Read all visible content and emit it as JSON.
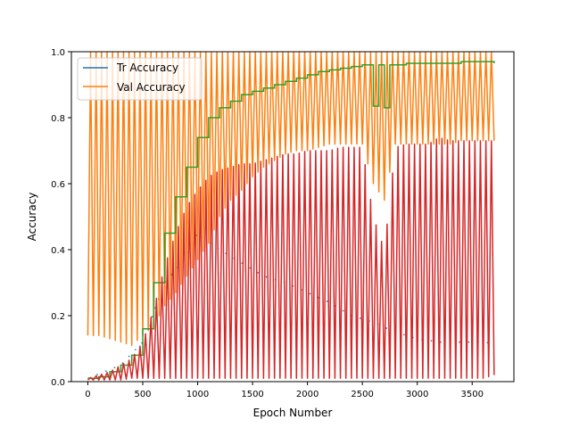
{
  "chart_data": {
    "type": "line",
    "xlabel": "Epoch Number",
    "ylabel": "Accuracy",
    "xlim": [
      -150,
      3880
    ],
    "ylim": [
      0,
      1.0
    ],
    "xticks": [
      0,
      500,
      1000,
      1500,
      2000,
      2500,
      3000,
      3500
    ],
    "yticks": [
      0.0,
      0.2,
      0.4,
      0.6,
      0.8,
      1.0
    ],
    "xtick_labels": [
      "0",
      "500",
      "1000",
      "1500",
      "2000",
      "2500",
      "3000",
      "3500"
    ],
    "ytick_labels": [
      "0.0",
      "0.2",
      "0.4",
      "0.6",
      "0.8",
      "1.0"
    ],
    "grid": false,
    "legend_position": "upper-left",
    "legend": [
      {
        "name": "Tr Accuracy",
        "color": "#1f77b4"
      },
      {
        "name": "Val Accuracy",
        "color": "#ff7f0e"
      }
    ],
    "series": [
      {
        "name": "Tr Accuracy",
        "color": "#1f77b4",
        "kind": "dotted-trend",
        "x": [
          0,
          300,
          500,
          700,
          900,
          1000,
          1200,
          1400,
          1600,
          1800,
          2000,
          2200,
          2400,
          2600,
          2800,
          3000,
          3200,
          3400,
          3600,
          3700
        ],
        "y": [
          0.01,
          0.05,
          0.12,
          0.3,
          0.38,
          0.45,
          0.4,
          0.36,
          0.32,
          0.3,
          0.27,
          0.24,
          0.2,
          0.18,
          0.15,
          0.13,
          0.12,
          0.12,
          0.12,
          0.115
        ]
      },
      {
        "name": "Val Accuracy",
        "color": "#ff7f0e",
        "kind": "oscillating",
        "cycle": 50,
        "x": [
          0,
          100,
          200,
          300,
          400,
          500,
          600,
          700,
          800,
          900,
          1000,
          1100,
          1200,
          1300,
          1400,
          1500,
          1600,
          1700,
          1800,
          1900,
          2000,
          2100,
          2200,
          2300,
          2400,
          2500,
          2600,
          2700,
          2800,
          2900,
          3000,
          3100,
          3200,
          3300,
          3400,
          3500,
          3600,
          3700
        ],
        "low": [
          0.14,
          0.14,
          0.13,
          0.12,
          0.11,
          0.14,
          0.17,
          0.23,
          0.27,
          0.32,
          0.37,
          0.42,
          0.5,
          0.55,
          0.58,
          0.62,
          0.65,
          0.67,
          0.69,
          0.7,
          0.7,
          0.71,
          0.72,
          0.72,
          0.72,
          0.72,
          0.6,
          0.55,
          0.72,
          0.72,
          0.72,
          0.72,
          0.72,
          0.72,
          0.73,
          0.73,
          0.73,
          0.73
        ],
        "high": [
          1.0,
          1.0,
          1.0,
          1.0,
          1.0,
          1.0,
          1.0,
          1.0,
          1.0,
          1.0,
          1.0,
          1.0,
          1.0,
          1.0,
          1.0,
          1.0,
          1.0,
          1.0,
          1.0,
          1.0,
          1.0,
          1.0,
          1.0,
          1.0,
          1.0,
          1.0,
          1.0,
          1.0,
          1.0,
          1.0,
          1.0,
          1.0,
          1.0,
          1.0,
          1.0,
          1.0,
          1.0,
          1.0
        ]
      },
      {
        "name": "",
        "color": "#2ca02c",
        "kind": "step",
        "x": [
          0,
          100,
          200,
          300,
          400,
          500,
          600,
          700,
          800,
          900,
          1000,
          1100,
          1200,
          1300,
          1400,
          1500,
          1600,
          1700,
          1800,
          1900,
          2000,
          2100,
          2200,
          2300,
          2400,
          2500,
          2550,
          2600,
          2650,
          2700,
          2750,
          2800,
          2900,
          3000,
          3100,
          3200,
          3300,
          3400,
          3500,
          3600,
          3700
        ],
        "y": [
          0.01,
          0.015,
          0.03,
          0.05,
          0.08,
          0.16,
          0.3,
          0.45,
          0.56,
          0.65,
          0.74,
          0.8,
          0.83,
          0.85,
          0.87,
          0.88,
          0.89,
          0.9,
          0.91,
          0.92,
          0.93,
          0.94,
          0.945,
          0.95,
          0.955,
          0.96,
          0.96,
          0.835,
          0.96,
          0.83,
          0.96,
          0.96,
          0.965,
          0.965,
          0.965,
          0.965,
          0.965,
          0.97,
          0.97,
          0.97,
          0.965
        ]
      },
      {
        "name": "",
        "color": "#d62728",
        "kind": "oscillating",
        "cycle": 50,
        "x": [
          0,
          100,
          200,
          300,
          400,
          500,
          600,
          700,
          800,
          900,
          1000,
          1100,
          1200,
          1300,
          1400,
          1500,
          1600,
          1700,
          1800,
          1900,
          2000,
          2100,
          2200,
          2300,
          2400,
          2500,
          2600,
          2700,
          2800,
          2900,
          3000,
          3100,
          3200,
          3300,
          3400,
          3500,
          3600,
          3700
        ],
        "low": [
          0.005,
          0.005,
          0.005,
          0.005,
          0.01,
          0.01,
          0.01,
          0.01,
          0.01,
          0.01,
          0.01,
          0.01,
          0.01,
          0.01,
          0.01,
          0.01,
          0.01,
          0.01,
          0.01,
          0.01,
          0.01,
          0.01,
          0.01,
          0.01,
          0.01,
          0.01,
          0.01,
          0.01,
          0.01,
          0.01,
          0.01,
          0.01,
          0.01,
          0.01,
          0.01,
          0.01,
          0.01,
          0.02
        ],
        "high": [
          0.01,
          0.02,
          0.03,
          0.05,
          0.07,
          0.12,
          0.22,
          0.35,
          0.45,
          0.53,
          0.58,
          0.62,
          0.64,
          0.65,
          0.66,
          0.66,
          0.67,
          0.68,
          0.69,
          0.69,
          0.7,
          0.7,
          0.7,
          0.71,
          0.71,
          0.71,
          0.5,
          0.4,
          0.71,
          0.72,
          0.72,
          0.72,
          0.74,
          0.73,
          0.73,
          0.73,
          0.73,
          0.73
        ]
      }
    ]
  }
}
